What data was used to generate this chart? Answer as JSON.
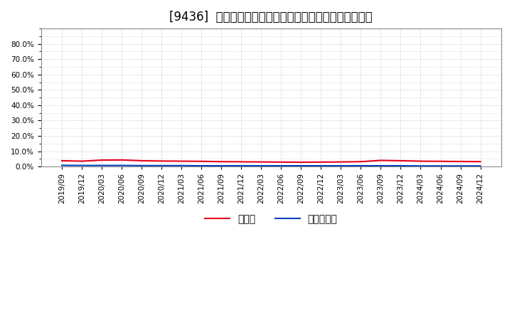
{
  "title": "[9436]  現預金、有利子負債の総資産に対する比率の推移",
  "x_labels": [
    "2019/09",
    "2019/12",
    "2020/03",
    "2020/06",
    "2020/09",
    "2020/12",
    "2021/03",
    "2021/06",
    "2021/09",
    "2021/12",
    "2022/03",
    "2022/06",
    "2022/09",
    "2022/12",
    "2023/03",
    "2023/06",
    "2023/09",
    "2023/12",
    "2024/03",
    "2024/06",
    "2024/09",
    "2024/12"
  ],
  "genyo_values": [
    3.8,
    3.5,
    4.2,
    4.3,
    3.8,
    3.6,
    3.5,
    3.4,
    3.2,
    3.1,
    3.0,
    2.9,
    2.8,
    2.9,
    3.0,
    3.2,
    4.0,
    3.8,
    3.5,
    3.4,
    3.3,
    3.2
  ],
  "yushi_values": [
    0.8,
    0.7,
    0.7,
    0.7,
    0.6,
    0.6,
    0.6,
    0.5,
    0.5,
    0.5,
    0.5,
    0.5,
    0.5,
    0.5,
    0.5,
    0.5,
    0.5,
    0.5,
    0.4,
    0.4,
    0.4,
    0.4
  ],
  "genyo_color": "#e8001c",
  "yushi_color": "#003fbe",
  "bg_color": "#ffffff",
  "plot_bg_color": "#ffffff",
  "grid_color": "#bbbbbb",
  "ylim": [
    0,
    90
  ],
  "yticks": [
    0,
    10,
    20,
    30,
    40,
    50,
    60,
    70,
    80
  ],
  "legend_genyo": "現預金",
  "legend_yushi": "有利子負債",
  "title_fontsize": 12,
  "tick_fontsize": 7.5,
  "legend_fontsize": 10
}
